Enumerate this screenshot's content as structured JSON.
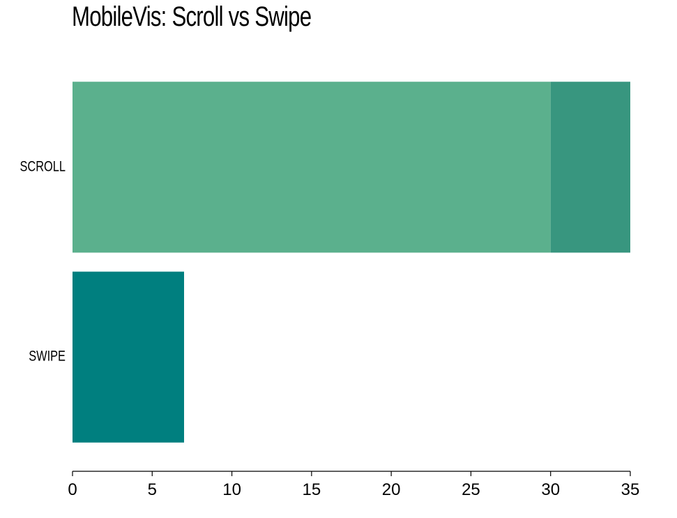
{
  "chart_data": {
    "type": "bar",
    "orientation": "horizontal",
    "stacked": true,
    "title": "MobileVis: Scroll vs Swipe",
    "xlabel": "",
    "ylabel": "",
    "categories": [
      "SCROLL",
      "SWIPE"
    ],
    "series": [
      {
        "color": "#5bb08d",
        "values": [
          30,
          7
        ]
      },
      {
        "color": "#38967f",
        "values": [
          5,
          0
        ]
      }
    ],
    "bar_colors": {
      "SCROLL": [
        "#5bb08d",
        "#38967f"
      ],
      "SWIPE": [
        "#007f7f"
      ]
    },
    "xlim": [
      0,
      35
    ],
    "xticks": [
      0,
      5,
      10,
      15,
      20,
      25,
      30,
      35
    ],
    "grid": false,
    "legend": "none"
  }
}
